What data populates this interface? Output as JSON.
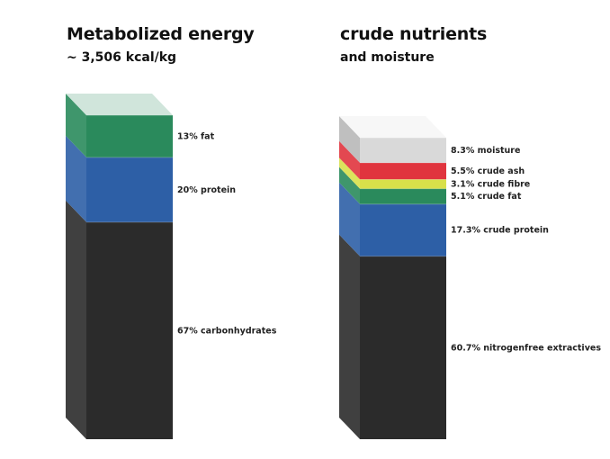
{
  "chart_data": [
    {
      "type": "bar",
      "title": "Metabolized energy",
      "subtitle": "~ 3,506 kcal/kg",
      "categories": [
        "carbonhydrates",
        "protein",
        "fat"
      ],
      "values": [
        67,
        20,
        13
      ],
      "unit": "%",
      "labels": [
        "67% carbonhydrates",
        "20% protein",
        "13% fat"
      ],
      "colors": [
        "#2b2b2b",
        "#2d5fa6",
        "#2a8a5c"
      ],
      "stacked": true,
      "style": "3d-stacked-column"
    },
    {
      "type": "bar",
      "title": "crude nutrients",
      "subtitle": "and moisture",
      "categories": [
        "nitrogenfree extractives",
        "crude protein",
        "crude fat",
        "crude fibre",
        "crude ash",
        "moisture"
      ],
      "values": [
        60.7,
        17.3,
        5.1,
        3.1,
        5.5,
        8.3
      ],
      "unit": "%",
      "labels": [
        "60.7% nitrogenfree extractives",
        "17.3% crude protein",
        "5.1% crude fat",
        "3.1% crude fibre",
        "5.5% crude ash",
        "8.3% moisture"
      ],
      "colors": [
        "#2b2b2b",
        "#2d5fa6",
        "#2a8a5c",
        "#d8e04a",
        "#e0343e",
        "#d9d9d9"
      ],
      "stacked": true,
      "style": "3d-stacked-column"
    }
  ]
}
